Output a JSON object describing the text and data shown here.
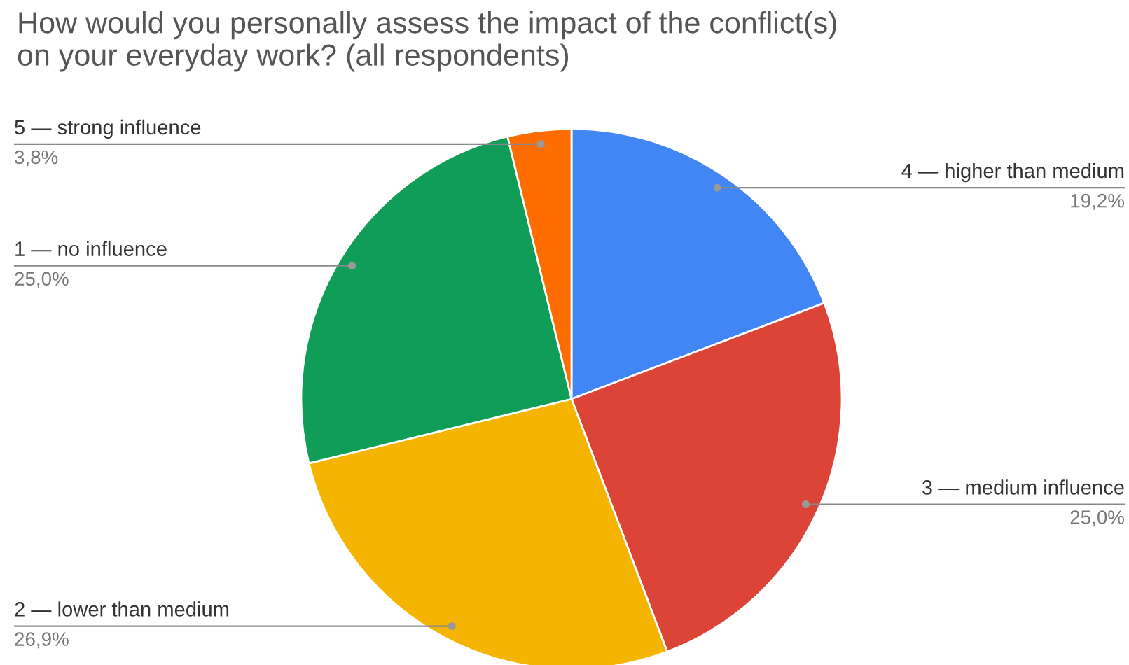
{
  "chart_data": {
    "type": "pie",
    "title": "How would you personally assess the impact of the conflict(s)\non your everyday work? (all respondents)",
    "categories": [
      "4 — higher than medium",
      "3 — medium influence",
      "2 — lower than medium",
      "1 — no influence",
      "5 — strong influence"
    ],
    "values": [
      19.2,
      25.0,
      26.9,
      25.0,
      3.8
    ],
    "value_labels": [
      "19,2%",
      "25,0%",
      "26,9%",
      "25,0%",
      "3,8%"
    ],
    "colors": [
      "#4285f4",
      "#db4437",
      "#f4b400",
      "#0f9d58",
      "#ff6d01"
    ]
  }
}
